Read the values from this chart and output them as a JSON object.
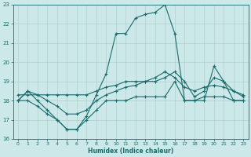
{
  "xlabel": "Humidex (Indice chaleur)",
  "bg_color": "#cce8e8",
  "grid_color": "#b0d0d0",
  "line_color": "#1a6b6b",
  "xlim": [
    -0.5,
    23.5
  ],
  "ylim": [
    16,
    23
  ],
  "xticks": [
    0,
    1,
    2,
    3,
    4,
    5,
    6,
    7,
    8,
    9,
    10,
    11,
    12,
    13,
    14,
    15,
    16,
    17,
    18,
    19,
    20,
    21,
    22,
    23
  ],
  "yticks": [
    16,
    17,
    18,
    19,
    20,
    21,
    22,
    23
  ],
  "line1_x": [
    0,
    1,
    2,
    3,
    4,
    5,
    6,
    7,
    8,
    9,
    10,
    11,
    12,
    13,
    14,
    15,
    16,
    17,
    18,
    19,
    20,
    21,
    22,
    23
  ],
  "line1_y": [
    18.0,
    18.5,
    18.0,
    17.5,
    17.0,
    16.5,
    16.5,
    17.2,
    18.3,
    19.4,
    21.5,
    21.5,
    22.3,
    22.5,
    22.6,
    23.0,
    21.5,
    18.0,
    18.0,
    18.0,
    19.8,
    19.0,
    18.0,
    18.0
  ],
  "line2_x": [
    0,
    1,
    2,
    3,
    4,
    5,
    6,
    7,
    8,
    9,
    10,
    11,
    12,
    13,
    14,
    15,
    16,
    17,
    18,
    19,
    20,
    21,
    22,
    23
  ],
  "line2_y": [
    18.0,
    18.0,
    17.7,
    17.3,
    17.0,
    16.5,
    16.5,
    17.0,
    17.5,
    18.0,
    18.0,
    18.0,
    18.2,
    18.2,
    18.2,
    18.2,
    19.0,
    18.0,
    18.0,
    18.2,
    18.2,
    18.2,
    18.0,
    18.0
  ],
  "line3_x": [
    0,
    1,
    2,
    3,
    4,
    5,
    6,
    7,
    8,
    9,
    10,
    11,
    12,
    13,
    14,
    15,
    16,
    17,
    18,
    19,
    20,
    21,
    22,
    23
  ],
  "line3_y": [
    18.0,
    18.5,
    18.3,
    18.0,
    17.7,
    17.3,
    17.3,
    17.5,
    18.0,
    18.3,
    18.5,
    18.7,
    18.8,
    19.0,
    19.0,
    19.2,
    19.5,
    19.0,
    18.2,
    18.5,
    19.2,
    19.0,
    18.5,
    18.2
  ],
  "line4_x": [
    0,
    1,
    2,
    3,
    4,
    5,
    6,
    7,
    8,
    9,
    10,
    11,
    12,
    13,
    14,
    15,
    16,
    17,
    18,
    19,
    20,
    21,
    22,
    23
  ],
  "line4_y": [
    18.3,
    18.3,
    18.3,
    18.3,
    18.3,
    18.3,
    18.3,
    18.3,
    18.5,
    18.7,
    18.8,
    19.0,
    19.0,
    19.0,
    19.2,
    19.5,
    19.2,
    18.7,
    18.5,
    18.7,
    18.8,
    18.7,
    18.5,
    18.3
  ]
}
